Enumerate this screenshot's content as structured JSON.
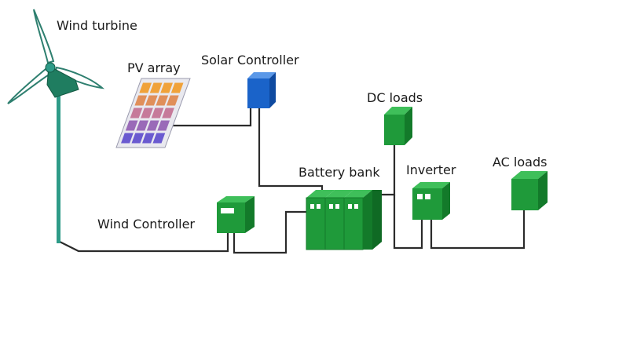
{
  "labels": {
    "wind_turbine": "Wind turbine",
    "pv_array": "PV array",
    "solar_controller": "Solar Controller",
    "dc_loads": "DC loads",
    "battery_bank": "Battery bank",
    "inverter": "Inverter",
    "ac_loads": "AC loads",
    "wind_controller": "Wind Controller"
  },
  "colors": {
    "wire": "#2b2b2b",
    "tower": "#2e9b88",
    "device_green": "#1f9a3a",
    "controller_blue": "#1a63c9",
    "blade": "#ffffff"
  },
  "icons": {
    "wind_turbine": "wind-turbine-icon",
    "pv_array": "solar-panel-icon",
    "solar_controller": "controller-box-icon",
    "wind_controller": "controller-box-icon",
    "battery_bank": "battery-icon",
    "inverter": "inverter-box-icon",
    "dc_loads": "load-box-icon",
    "ac_loads": "load-box-icon"
  }
}
